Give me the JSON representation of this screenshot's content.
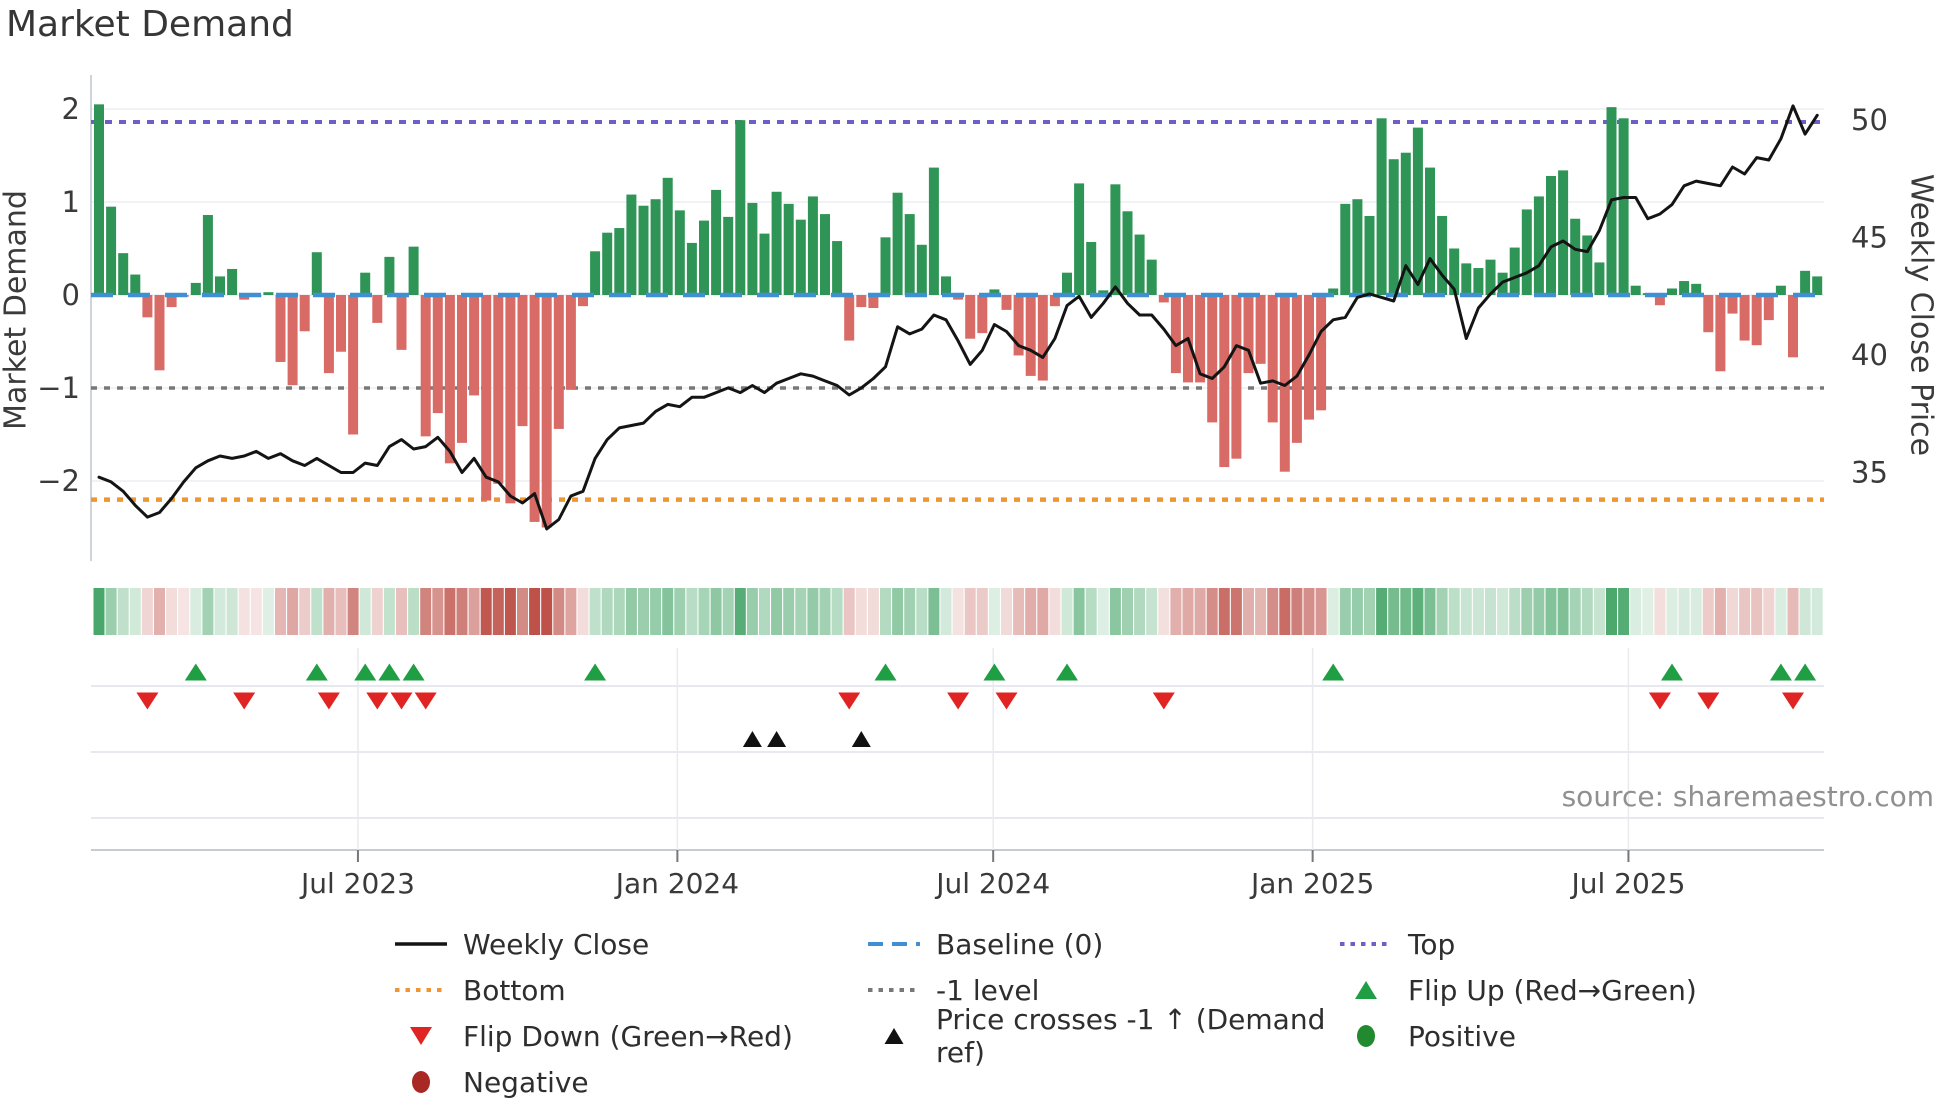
{
  "title": "Market Demand",
  "source": "source: sharemaestro.com",
  "axes": {
    "left_label": "Market Demand",
    "right_label": "Weekly Close Price",
    "left_ticks": [
      {
        "label": "2",
        "value": 2
      },
      {
        "label": "1",
        "value": 1
      },
      {
        "label": "0",
        "value": 0
      },
      {
        "label": "−1",
        "value": -1
      },
      {
        "label": "−2",
        "value": -2
      }
    ],
    "right_ticks": [
      {
        "label": "50",
        "value": 50
      },
      {
        "label": "45",
        "value": 45
      },
      {
        "label": "40",
        "value": 40
      },
      {
        "label": "35",
        "value": 35
      }
    ],
    "x_ticks": [
      {
        "label": "Jul 2023",
        "week": 21.4
      },
      {
        "label": "Jan 2024",
        "week": 47.8
      },
      {
        "label": "Jul 2024",
        "week": 73.9
      },
      {
        "label": "Jan 2025",
        "week": 100.3
      },
      {
        "label": "Jul 2025",
        "week": 126.4
      }
    ]
  },
  "ref_lines": {
    "top": {
      "label": "Top",
      "value": 1.86
    },
    "baseline": {
      "label": "Baseline (0)",
      "value": 0
    },
    "minus_one": {
      "label": "-1 level",
      "value": -1
    },
    "bottom": {
      "label": "Bottom",
      "value": -2.2
    }
  },
  "colors": {
    "bar_positive": "#2e9556",
    "bar_negative": "#d96b66",
    "price_line": "#141414",
    "baseline": "#3f8fd2",
    "top_line": "#6b5fc9",
    "bottom_line": "#ef9632",
    "minus_one_line": "#787878",
    "flip_up": "#1f9e44",
    "flip_down": "#e02423",
    "price_cross": "#111111",
    "positive_dot": "#228a2e",
    "negative_dot": "#a82824",
    "heat_positive": "#389e5c",
    "heat_negative": "#be524a",
    "grid": "#ecedf3",
    "panel_grid": "#e0e2e8",
    "axis_line": "#c6cbd2",
    "tick_text": "#3a3a3a",
    "source_text": "#909090"
  },
  "chart_data": {
    "type": "composite",
    "x_unit": "week",
    "n_weeks": 143,
    "ylim_left": [
      -2.85,
      2.37
    ],
    "ylim_right": [
      32.4,
      51.9
    ],
    "series": [
      {
        "name": "Market Demand",
        "type": "bar",
        "axis": "left",
        "values": [
          2.05,
          0.95,
          0.45,
          0.22,
          -0.24,
          -0.81,
          -0.13,
          -0.02,
          0.13,
          0.86,
          0.2,
          0.28,
          -0.05,
          -0.02,
          0.03,
          -0.72,
          -0.97,
          -0.39,
          0.46,
          -0.84,
          -0.61,
          -1.5,
          0.24,
          -0.3,
          0.41,
          -0.59,
          0.52,
          -1.52,
          -1.27,
          -1.81,
          -1.59,
          -1.08,
          -2.21,
          -2.03,
          -2.24,
          -1.41,
          -2.44,
          -2.5,
          -1.44,
          -1.02,
          -0.12,
          0.47,
          0.67,
          0.72,
          1.08,
          0.96,
          1.03,
          1.26,
          0.91,
          0.56,
          0.8,
          1.13,
          0.84,
          1.88,
          0.99,
          0.66,
          1.11,
          0.98,
          0.81,
          1.06,
          0.87,
          0.58,
          -0.49,
          -0.13,
          -0.14,
          0.62,
          1.1,
          0.87,
          0.54,
          1.37,
          0.2,
          -0.05,
          -0.47,
          -0.41,
          0.06,
          -0.16,
          -0.65,
          -0.87,
          -0.92,
          -0.12,
          0.24,
          1.2,
          0.57,
          0.05,
          1.19,
          0.9,
          0.65,
          0.38,
          -0.08,
          -0.84,
          -0.94,
          -0.94,
          -1.37,
          -1.85,
          -1.76,
          -0.84,
          -0.74,
          -1.37,
          -1.9,
          -1.59,
          -1.34,
          -1.24,
          0.07,
          0.98,
          1.03,
          0.85,
          1.9,
          1.46,
          1.53,
          1.8,
          1.37,
          0.85,
          0.5,
          0.34,
          0.29,
          0.38,
          0.24,
          0.51,
          0.92,
          1.06,
          1.28,
          1.34,
          0.82,
          0.64,
          0.35,
          2.02,
          1.9,
          0.1,
          0.02,
          -0.11,
          0.07,
          0.15,
          0.12,
          -0.4,
          -0.82,
          -0.2,
          -0.49,
          -0.54,
          -0.27,
          0.1,
          -0.67,
          0.26,
          0.2
        ]
      },
      {
        "name": "Weekly Close",
        "type": "line",
        "axis": "right",
        "values": [
          34.8,
          34.6,
          34.2,
          33.6,
          33.1,
          33.3,
          33.9,
          34.6,
          35.2,
          35.5,
          35.7,
          35.6,
          35.7,
          35.9,
          35.6,
          35.8,
          35.5,
          35.3,
          35.6,
          35.3,
          35.0,
          35.0,
          35.4,
          35.3,
          36.1,
          36.4,
          36.0,
          36.1,
          36.5,
          35.9,
          35.0,
          35.6,
          34.8,
          34.6,
          34.0,
          33.7,
          34.1,
          32.6,
          33.0,
          34.0,
          34.2,
          35.6,
          36.4,
          36.9,
          37.0,
          37.1,
          37.6,
          37.9,
          37.8,
          38.2,
          38.2,
          38.4,
          38.6,
          38.4,
          38.7,
          38.4,
          38.8,
          39.0,
          39.2,
          39.1,
          38.9,
          38.7,
          38.3,
          38.6,
          39.0,
          39.5,
          41.2,
          40.9,
          41.1,
          41.7,
          41.5,
          40.6,
          39.6,
          40.2,
          41.3,
          41.0,
          40.4,
          40.2,
          39.9,
          40.7,
          42.1,
          42.5,
          41.6,
          42.2,
          42.9,
          42.2,
          41.7,
          41.7,
          41.1,
          40.4,
          40.7,
          39.2,
          39.0,
          39.5,
          40.4,
          40.2,
          38.8,
          38.9,
          38.7,
          39.1,
          40.0,
          41.0,
          41.5,
          41.6,
          42.45,
          42.6,
          42.45,
          42.3,
          43.8,
          43.0,
          44.1,
          43.4,
          42.8,
          40.7,
          42.0,
          42.6,
          43.1,
          43.3,
          43.5,
          43.8,
          44.6,
          44.85,
          44.5,
          44.4,
          45.3,
          46.6,
          46.7,
          46.7,
          45.8,
          46.0,
          46.4,
          47.2,
          47.4,
          47.3,
          47.2,
          48.0,
          47.7,
          48.4,
          48.3,
          49.2,
          50.6,
          49.4,
          50.2
        ]
      }
    ],
    "heatmap": {
      "note": "weekly strip, green=positive demand, red=negative, intensity = |value|"
    },
    "markers": {
      "flip_up_weeks": [
        8,
        18,
        22,
        24,
        26,
        41,
        65,
        74,
        80,
        102,
        130,
        139,
        141
      ],
      "flip_down_weeks": [
        4,
        12,
        19,
        23,
        25,
        27,
        62,
        71,
        75,
        88,
        129,
        133,
        140
      ],
      "price_cross_weeks": [
        54,
        56,
        63
      ]
    }
  },
  "legend": {
    "items": [
      {
        "label": "Weekly Close",
        "swatch": "line-black"
      },
      {
        "label": "Baseline (0)",
        "swatch": "dash-blue"
      },
      {
        "label": "Top",
        "swatch": "dot-purple"
      },
      {
        "label": "Bottom",
        "swatch": "dot-orange"
      },
      {
        "label": "-1 level",
        "swatch": "dot-gray"
      },
      {
        "label": "Flip Up (Red→Green)",
        "swatch": "tri-up-green"
      },
      {
        "label": "Flip Down (Green→Red)",
        "swatch": "tri-down-red"
      },
      {
        "label": "Price crosses -1 ↑ (Demand ref)",
        "swatch": "tri-up-black"
      },
      {
        "label": "Positive",
        "swatch": "circle-green"
      },
      {
        "label": "Negative",
        "swatch": "circle-darkred"
      }
    ]
  }
}
